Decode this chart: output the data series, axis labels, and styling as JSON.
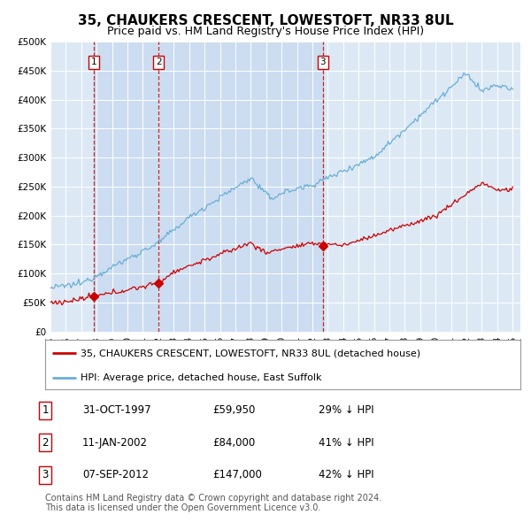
{
  "title": "35, CHAUKERS CRESCENT, LOWESTOFT, NR33 8UL",
  "subtitle": "Price paid vs. HM Land Registry's House Price Index (HPI)",
  "ylim": [
    0,
    500000
  ],
  "yticks": [
    0,
    50000,
    100000,
    150000,
    200000,
    250000,
    300000,
    350000,
    400000,
    450000,
    500000
  ],
  "ytick_labels": [
    "£0",
    "£50K",
    "£100K",
    "£150K",
    "£200K",
    "£250K",
    "£300K",
    "£350K",
    "£400K",
    "£450K",
    "£500K"
  ],
  "background_color": "#dce9f5",
  "hpi_color": "#6baed6",
  "price_color": "#cc0000",
  "vline_color": "#cc0000",
  "legend_label_price": "35, CHAUKERS CRESCENT, LOWESTOFT, NR33 8UL (detached house)",
  "legend_label_hpi": "HPI: Average price, detached house, East Suffolk",
  "sales": [
    {
      "date": 1997.83,
      "price": 59950,
      "label": "1"
    },
    {
      "date": 2002.03,
      "price": 84000,
      "label": "2"
    },
    {
      "date": 2012.67,
      "price": 147000,
      "label": "3"
    }
  ],
  "table_data": [
    [
      "1",
      "31-OCT-1997",
      "£59,950",
      "29% ↓ HPI"
    ],
    [
      "2",
      "11-JAN-2002",
      "£84,000",
      "41% ↓ HPI"
    ],
    [
      "3",
      "07-SEP-2012",
      "£147,000",
      "42% ↓ HPI"
    ]
  ],
  "footer": "Contains HM Land Registry data © Crown copyright and database right 2024.\nThis data is licensed under the Open Government Licence v3.0.",
  "title_fontsize": 11,
  "subtitle_fontsize": 9,
  "tick_fontsize": 7.5,
  "legend_fontsize": 8,
  "table_fontsize": 8.5,
  "footer_fontsize": 7
}
